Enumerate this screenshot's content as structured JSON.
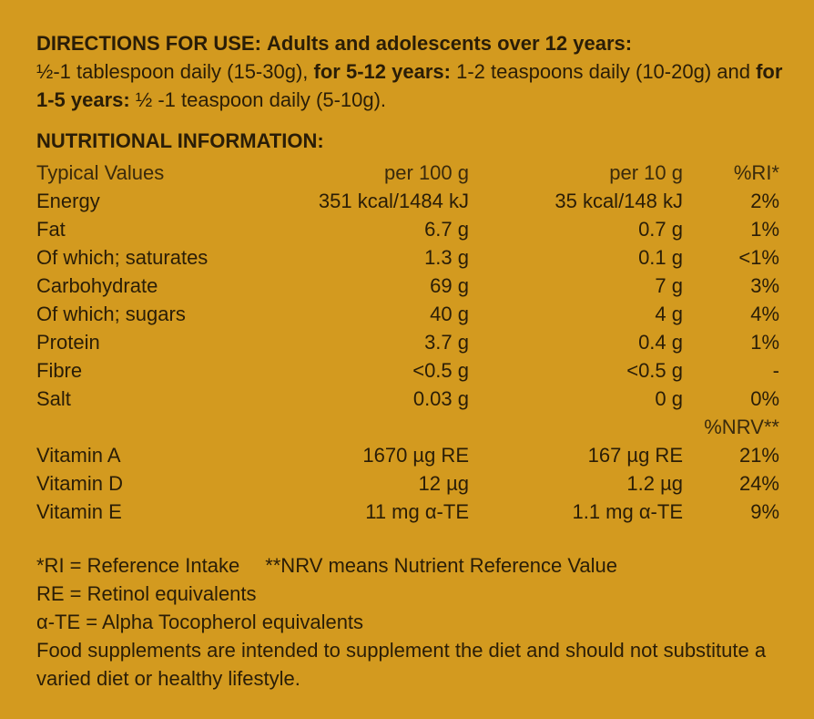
{
  "directions": {
    "label": "DIRECTIONS FOR USE:",
    "adults_label": "Adults and adolescents over 12 years:",
    "adults_dose": "½-1 tablespoon daily (15-30g),",
    "children_label": "for 5-12 years:",
    "children_dose": "1-2 teaspoons daily (10-20g) and",
    "toddlers_label": "for 1-5 years:",
    "toddlers_dose": "½ -1 teaspoon daily (5-10g)."
  },
  "nutrition": {
    "heading": "NUTRITIONAL INFORMATION:",
    "header": {
      "typical": "Typical Values",
      "per100": "per 100 g",
      "per10": "per 10 g",
      "ri": "%RI*"
    },
    "rows": [
      {
        "name": "Energy",
        "per100": "351 kcal/1484 kJ",
        "per10": "35 kcal/148 kJ",
        "pct": "2%"
      },
      {
        "name": "Fat",
        "per100": "6.7 g",
        "per10": "0.7 g",
        "pct": "1%"
      },
      {
        "name": "Of which; saturates",
        "per100": "1.3 g",
        "per10": "0.1 g",
        "pct": "<1%"
      },
      {
        "name": "Carbohydrate",
        "per100": "69 g",
        "per10": "7 g",
        "pct": "3%"
      },
      {
        "name": "Of which; sugars",
        "per100": "40 g",
        "per10": "4 g",
        "pct": "4%"
      },
      {
        "name": "Protein",
        "per100": "3.7 g",
        "per10": "0.4 g",
        "pct": "1%"
      },
      {
        "name": "Fibre",
        "per100": "<0.5 g",
        "per10": "<0.5 g",
        "pct": "-"
      },
      {
        "name": "Salt",
        "per100": "0.03 g",
        "per10": "0 g",
        "pct": "0%"
      }
    ],
    "nrv_header": "%NRV**",
    "vitamins": [
      {
        "name": "Vitamin A",
        "per100": "1670 µg RE",
        "per10": "167 µg RE",
        "pct": "21%"
      },
      {
        "name": "Vitamin D",
        "per100": "12 µg",
        "per10": "1.2 µg",
        "pct": "24%"
      },
      {
        "name": "Vitamin E",
        "per100": "11 mg α-TE",
        "per10": "1.1 mg α-TE",
        "pct": "9%"
      }
    ]
  },
  "footnotes": {
    "ri": "*RI = Reference Intake",
    "nrv": "**NRV means Nutrient Reference Value",
    "re": "RE = Retinol equivalents",
    "ate": "α-TE = Alpha Tocopherol equivalents",
    "supplement": "Food supplements are intended to supplement the diet and should not substitute a varied diet or healthy lifestyle."
  },
  "colors": {
    "background": "#d39a1f",
    "text": "#2a1d07"
  }
}
